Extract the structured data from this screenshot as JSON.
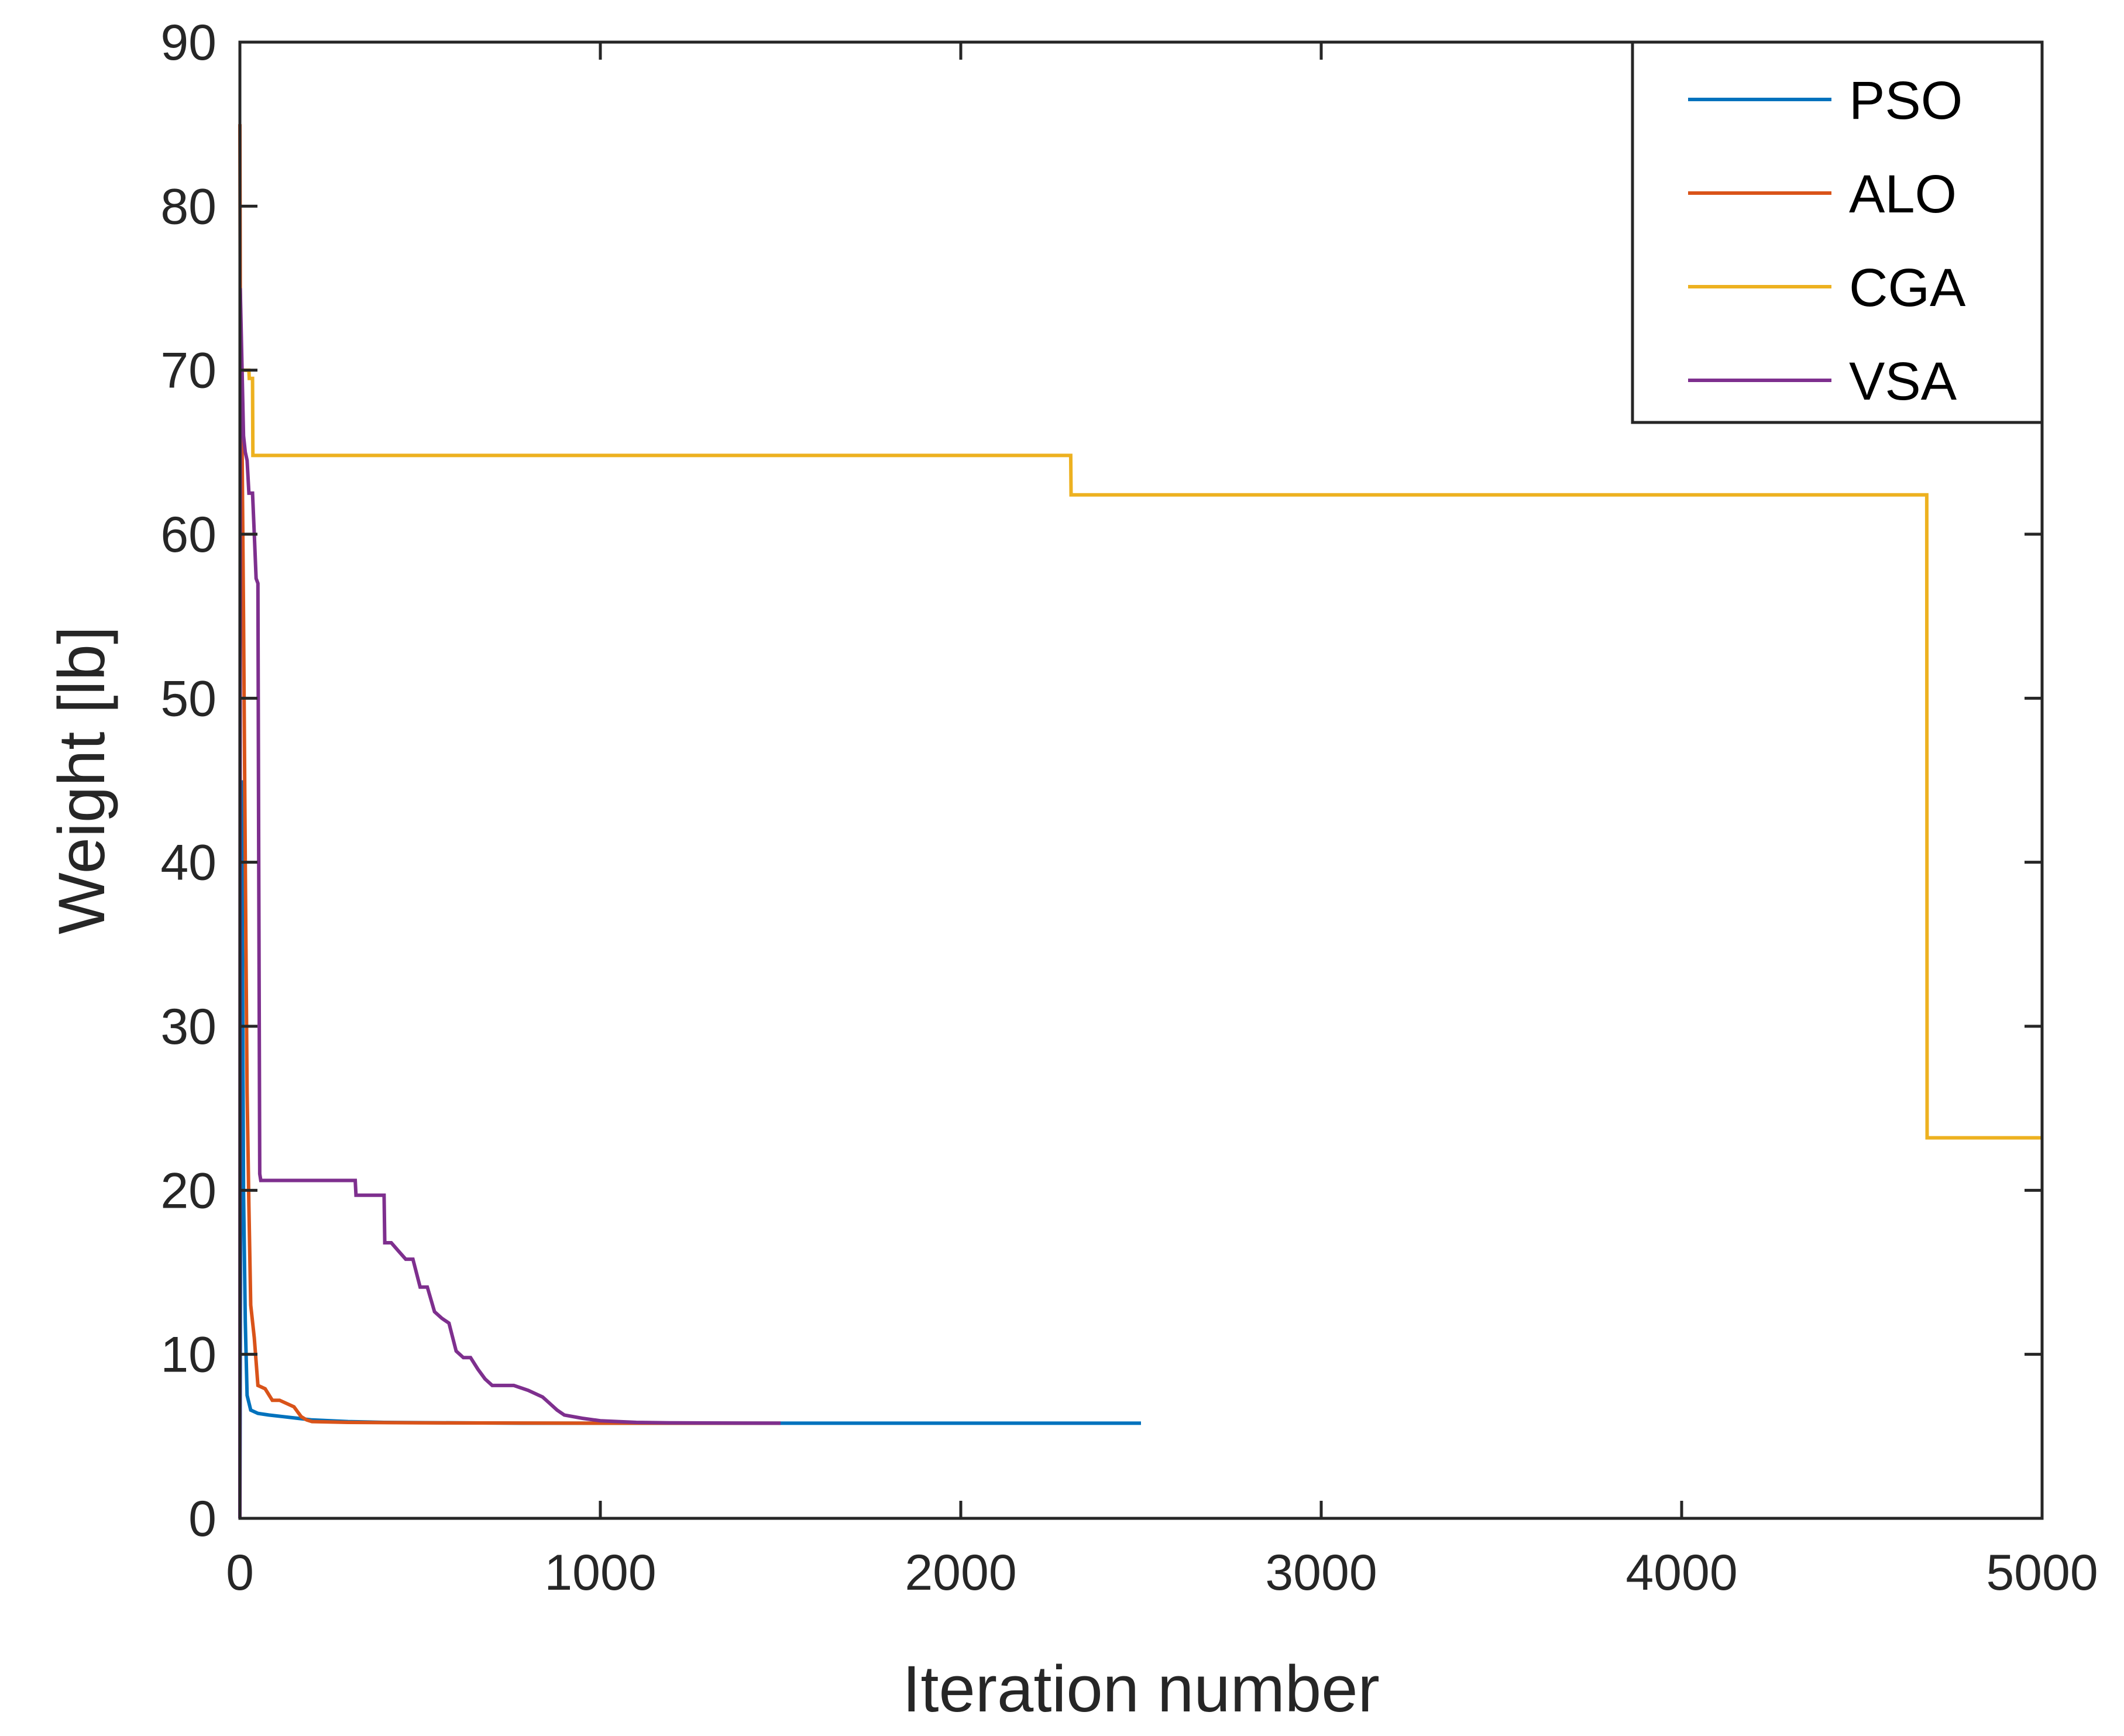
{
  "chart_data": {
    "type": "line",
    "title": "",
    "xlabel": "Iteration number",
    "ylabel": "Weight [lb]",
    "xlim": [
      0,
      5000
    ],
    "ylim": [
      0,
      90
    ],
    "xticks": [
      0,
      1000,
      2000,
      3000,
      4000,
      5000
    ],
    "xtick_labels": [
      "0",
      "1000",
      "2000",
      "3000",
      "4000",
      "5000"
    ],
    "yticks": [
      0,
      10,
      20,
      30,
      40,
      50,
      60,
      70,
      80,
      90
    ],
    "ytick_labels": [
      "0",
      "10",
      "20",
      "30",
      "40",
      "50",
      "60",
      "70",
      "80",
      "90"
    ],
    "grid": false,
    "legend_position": "top-right",
    "series": [
      {
        "name": "PSO",
        "color": "#0072BD",
        "x": [
          0,
          5,
          10,
          15,
          20,
          30,
          50,
          80,
          120,
          160,
          200,
          300,
          400,
          600,
          800,
          1000,
          1500,
          2000,
          2500
        ],
        "y": [
          0,
          45,
          20,
          12,
          7.5,
          6.6,
          6.4,
          6.3,
          6.2,
          6.1,
          6.0,
          5.9,
          5.85,
          5.82,
          5.8,
          5.8,
          5.8,
          5.8,
          5.8
        ]
      },
      {
        "name": "ALO",
        "color": "#D95319",
        "x": [
          0,
          1,
          5,
          10,
          15,
          20,
          25,
          30,
          40,
          50,
          70,
          90,
          110,
          130,
          150,
          170,
          185,
          200,
          300,
          500,
          1000,
          1500
        ],
        "y": [
          85,
          75,
          68,
          55,
          40,
          26,
          19,
          13,
          11,
          8.1,
          7.9,
          7.2,
          7.2,
          7.0,
          6.8,
          6.2,
          6.0,
          5.9,
          5.85,
          5.82,
          5.8,
          5.8
        ]
      },
      {
        "name": "CGA",
        "color": "#EDB120",
        "x": [
          0,
          25,
          26,
          35,
          36,
          2305,
          2306,
          4680,
          4681,
          5000
        ],
        "y": [
          70,
          70,
          69.5,
          69.5,
          64.8,
          64.8,
          62.4,
          62.4,
          23.2,
          23.2
        ]
      },
      {
        "name": "VSA",
        "color": "#7E2F8E",
        "x": [
          0,
          1,
          5,
          10,
          15,
          20,
          25,
          30,
          35,
          40,
          45,
          50,
          52,
          55,
          58,
          60,
          320,
          322,
          400,
          402,
          420,
          440,
          460,
          480,
          500,
          520,
          540,
          560,
          580,
          600,
          620,
          640,
          660,
          680,
          700,
          760,
          800,
          840,
          860,
          880,
          900,
          950,
          1000,
          1100,
          1200,
          1500
        ],
        "y": [
          0,
          75,
          71,
          66,
          65,
          64.5,
          62.5,
          62.5,
          62.5,
          60,
          57.3,
          57,
          42,
          21,
          20.6,
          20.6,
          20.6,
          19.7,
          19.7,
          16.8,
          16.8,
          16.3,
          15.8,
          15.8,
          14.1,
          14.1,
          12.6,
          12.2,
          11.9,
          10.2,
          9.8,
          9.8,
          9.1,
          8.5,
          8.1,
          8.1,
          7.8,
          7.4,
          7.0,
          6.6,
          6.3,
          6.1,
          5.95,
          5.85,
          5.82,
          5.8
        ]
      }
    ]
  }
}
